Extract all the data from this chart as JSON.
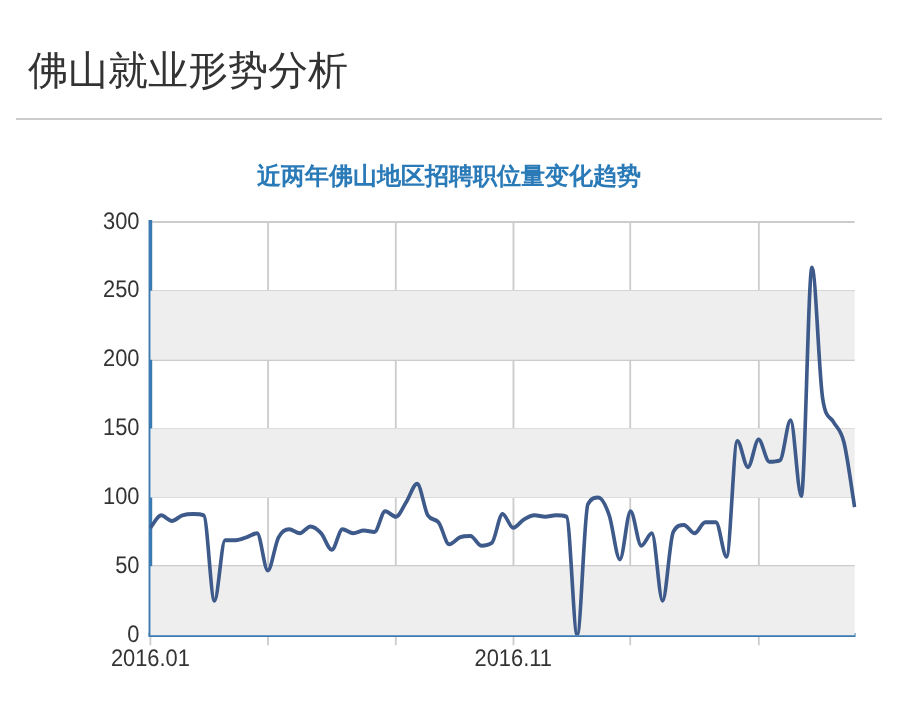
{
  "chart_data": {
    "type": "line",
    "title": "佛山就业形势分析",
    "subtitle": "近两年佛山地区招聘职位量变化趋势",
    "categories": [
      "2016.01",
      null,
      null,
      null,
      null,
      null,
      null,
      null,
      null,
      null,
      null,
      null,
      null,
      null,
      null,
      null,
      null,
      null,
      null,
      null,
      null,
      null,
      null,
      null,
      null,
      null,
      null,
      null,
      null,
      null,
      null,
      null,
      null,
      null,
      "2016.11",
      null,
      null,
      null,
      null,
      null,
      null,
      null,
      null,
      null,
      null,
      null,
      null,
      null,
      null,
      null,
      null,
      null,
      null,
      null,
      null,
      null,
      null,
      null,
      null,
      null,
      null,
      null,
      null,
      null,
      null,
      null,
      null
    ],
    "series": [
      {
        "color": "#3d5a8a",
        "values": [
          78,
          87,
          83,
          87,
          88,
          87,
          25,
          69,
          69,
          71,
          74,
          47,
          71,
          77,
          74,
          79,
          74,
          62,
          77,
          74,
          76,
          75,
          90,
          86,
          97,
          110,
          87,
          82,
          66,
          71,
          72,
          65,
          67,
          88,
          78,
          84,
          87,
          86,
          87,
          86,
          0,
          95,
          100,
          87,
          55,
          90,
          65,
          74,
          25,
          75,
          80,
          74,
          82,
          82,
          57,
          141,
          122,
          142,
          126,
          127,
          156,
          101,
          267,
          172,
          155,
          140,
          93
        ]
      }
    ],
    "ylim": [
      0,
      300
    ],
    "yticks": [
      0,
      50,
      100,
      150,
      200,
      250,
      300
    ],
    "grid": true,
    "legend": false,
    "marker": "none",
    "line_style": "solid"
  }
}
